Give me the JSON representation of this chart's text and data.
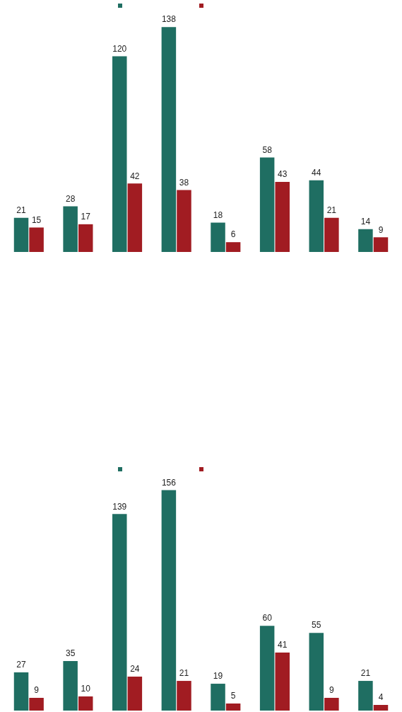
{
  "chart_data": [
    {
      "type": "bar",
      "categories": [
        null,
        null,
        null,
        null,
        null,
        null,
        null,
        null
      ],
      "grid": false,
      "data_labels": true,
      "series": [
        {
          "color": "#1f6e62",
          "values": [
            21,
            28,
            120,
            138,
            18,
            58,
            44,
            14
          ]
        },
        {
          "color": "#a11c22",
          "values": [
            15,
            17,
            42,
            38,
            6,
            43,
            21,
            9
          ]
        }
      ]
    },
    {
      "type": "bar",
      "categories": [
        null,
        null,
        null,
        null,
        null,
        null,
        null,
        null
      ],
      "grid": false,
      "data_labels": true,
      "series": [
        {
          "color": "#1f6e62",
          "values": [
            27,
            35,
            139,
            156,
            19,
            60,
            55,
            21
          ]
        },
        {
          "color": "#a11c22",
          "values": [
            9,
            10,
            24,
            21,
            5,
            41,
            9,
            4
          ]
        }
      ]
    }
  ]
}
